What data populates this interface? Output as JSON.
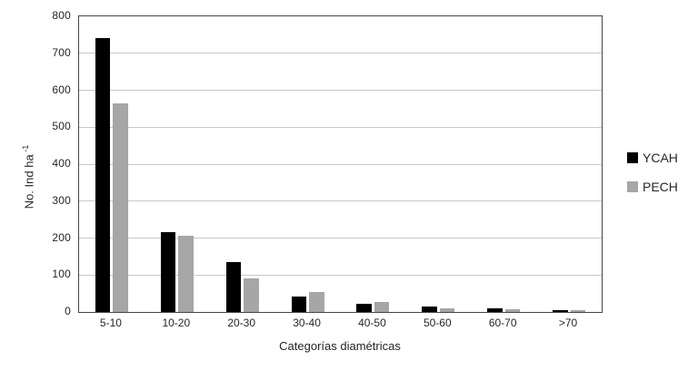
{
  "chart_data": {
    "type": "bar",
    "title": "",
    "categories": [
      "5-10",
      "10-20",
      "20-30",
      "30-40",
      "40-50",
      "50-60",
      "60-70",
      ">70"
    ],
    "series": [
      {
        "name": "YCAH",
        "color": "#000000",
        "values": [
          740,
          215,
          135,
          42,
          23,
          14,
          10,
          6
        ]
      },
      {
        "name": "PECH",
        "color": "#a6a6a6",
        "values": [
          565,
          205,
          90,
          55,
          27,
          9,
          7,
          4
        ]
      }
    ],
    "xlabel": "Categorías diamétricas",
    "ylabel": "No. Ind ha",
    "ylabel_superscript": "-1",
    "ylim": [
      0,
      800
    ],
    "ytick_step": 100,
    "ytick_labels": [
      "0",
      "100",
      "200",
      "300",
      "400",
      "500",
      "600",
      "700",
      "800"
    ],
    "grid": "horizontal",
    "legend_position": "right"
  },
  "colors": {
    "background": "#ffffff",
    "plot_border": "#454545",
    "gridline": "#c9c9c9",
    "text": "#262626"
  }
}
